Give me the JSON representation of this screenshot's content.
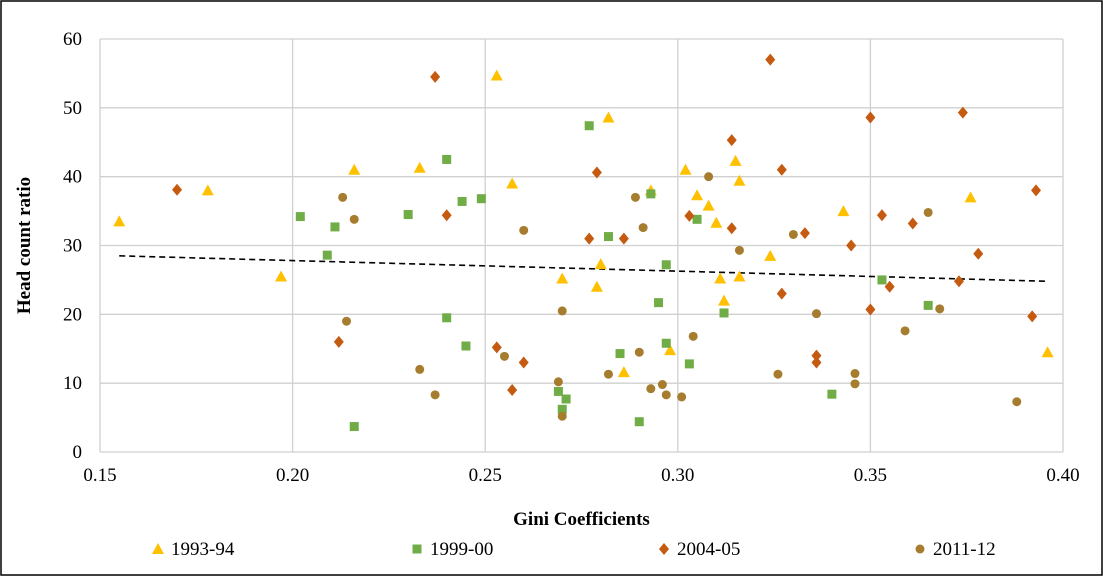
{
  "chart_data": {
    "type": "scatter",
    "xlabel": "Gini Coefficients",
    "ylabel": "Head count ratio",
    "xlim": [
      0.15,
      0.4
    ],
    "ylim": [
      0,
      60
    ],
    "x_ticks": [
      "0.15",
      "0.20",
      "0.25",
      "0.30",
      "0.35",
      "0.40"
    ],
    "y_ticks": [
      "0",
      "10",
      "20",
      "30",
      "40",
      "50",
      "60"
    ],
    "grid": true,
    "legend_position": "bottom",
    "trendline": {
      "style": "dashed",
      "x": [
        0.155,
        0.396
      ],
      "y": [
        28.5,
        24.8
      ]
    },
    "series": [
      {
        "name": "1993-94",
        "marker": "triangle",
        "color": "#FFC000",
        "points": [
          [
            0.155,
            33.5
          ],
          [
            0.178,
            38.0
          ],
          [
            0.197,
            25.5
          ],
          [
            0.216,
            41.0
          ],
          [
            0.233,
            41.3
          ],
          [
            0.253,
            54.7
          ],
          [
            0.257,
            39.0
          ],
          [
            0.27,
            25.2
          ],
          [
            0.279,
            24.0
          ],
          [
            0.28,
            27.3
          ],
          [
            0.282,
            48.6
          ],
          [
            0.286,
            11.6
          ],
          [
            0.293,
            38.0
          ],
          [
            0.298,
            14.8
          ],
          [
            0.302,
            41.0
          ],
          [
            0.305,
            37.3
          ],
          [
            0.308,
            35.8
          ],
          [
            0.31,
            33.3
          ],
          [
            0.311,
            25.2
          ],
          [
            0.312,
            22.0
          ],
          [
            0.315,
            42.3
          ],
          [
            0.316,
            39.4
          ],
          [
            0.316,
            25.5
          ],
          [
            0.324,
            28.5
          ],
          [
            0.343,
            35.0
          ],
          [
            0.376,
            37.0
          ],
          [
            0.396,
            14.5
          ]
        ]
      },
      {
        "name": "1999-00",
        "marker": "square",
        "color": "#70AD47",
        "points": [
          [
            0.202,
            34.2
          ],
          [
            0.209,
            28.6
          ],
          [
            0.211,
            32.7
          ],
          [
            0.216,
            3.7
          ],
          [
            0.23,
            34.5
          ],
          [
            0.24,
            42.5
          ],
          [
            0.24,
            19.5
          ],
          [
            0.244,
            36.4
          ],
          [
            0.245,
            15.4
          ],
          [
            0.249,
            36.8
          ],
          [
            0.269,
            8.8
          ],
          [
            0.27,
            6.2
          ],
          [
            0.271,
            7.7
          ],
          [
            0.277,
            47.4
          ],
          [
            0.282,
            31.3
          ],
          [
            0.285,
            14.3
          ],
          [
            0.29,
            4.4
          ],
          [
            0.293,
            37.5
          ],
          [
            0.295,
            21.7
          ],
          [
            0.297,
            27.2
          ],
          [
            0.297,
            15.8
          ],
          [
            0.303,
            12.8
          ],
          [
            0.305,
            33.8
          ],
          [
            0.312,
            20.2
          ],
          [
            0.34,
            8.4
          ],
          [
            0.353,
            25.0
          ],
          [
            0.365,
            21.3
          ]
        ]
      },
      {
        "name": "2004-05",
        "marker": "diamond",
        "color": "#C55A11",
        "points": [
          [
            0.17,
            38.1
          ],
          [
            0.212,
            16.0
          ],
          [
            0.237,
            54.5
          ],
          [
            0.24,
            34.4
          ],
          [
            0.253,
            15.2
          ],
          [
            0.257,
            9.0
          ],
          [
            0.26,
            13.0
          ],
          [
            0.277,
            31.0
          ],
          [
            0.279,
            40.6
          ],
          [
            0.286,
            31.0
          ],
          [
            0.303,
            34.3
          ],
          [
            0.314,
            45.3
          ],
          [
            0.314,
            32.5
          ],
          [
            0.324,
            57.0
          ],
          [
            0.327,
            41.0
          ],
          [
            0.327,
            23.0
          ],
          [
            0.333,
            31.8
          ],
          [
            0.336,
            14.0
          ],
          [
            0.336,
            13.0
          ],
          [
            0.345,
            30.0
          ],
          [
            0.35,
            48.6
          ],
          [
            0.35,
            20.7
          ],
          [
            0.353,
            34.4
          ],
          [
            0.355,
            24.0
          ],
          [
            0.361,
            33.2
          ],
          [
            0.373,
            24.8
          ],
          [
            0.374,
            49.3
          ],
          [
            0.378,
            28.8
          ],
          [
            0.392,
            19.7
          ],
          [
            0.393,
            38.0
          ]
        ]
      },
      {
        "name": "2011-12",
        "marker": "circle",
        "color": "#A67C2E",
        "points": [
          [
            0.213,
            37.0
          ],
          [
            0.214,
            19.0
          ],
          [
            0.216,
            33.8
          ],
          [
            0.233,
            12.0
          ],
          [
            0.237,
            8.3
          ],
          [
            0.255,
            13.9
          ],
          [
            0.26,
            32.2
          ],
          [
            0.269,
            10.2
          ],
          [
            0.27,
            20.5
          ],
          [
            0.27,
            5.2
          ],
          [
            0.282,
            11.3
          ],
          [
            0.289,
            37.0
          ],
          [
            0.29,
            14.5
          ],
          [
            0.291,
            32.6
          ],
          [
            0.293,
            9.2
          ],
          [
            0.296,
            9.8
          ],
          [
            0.297,
            8.3
          ],
          [
            0.301,
            8.0
          ],
          [
            0.304,
            16.8
          ],
          [
            0.308,
            40.0
          ],
          [
            0.316,
            29.3
          ],
          [
            0.326,
            11.3
          ],
          [
            0.33,
            31.6
          ],
          [
            0.336,
            20.1
          ],
          [
            0.346,
            11.4
          ],
          [
            0.346,
            9.9
          ],
          [
            0.359,
            17.6
          ],
          [
            0.365,
            34.8
          ],
          [
            0.368,
            20.8
          ],
          [
            0.388,
            7.3
          ]
        ]
      }
    ]
  }
}
